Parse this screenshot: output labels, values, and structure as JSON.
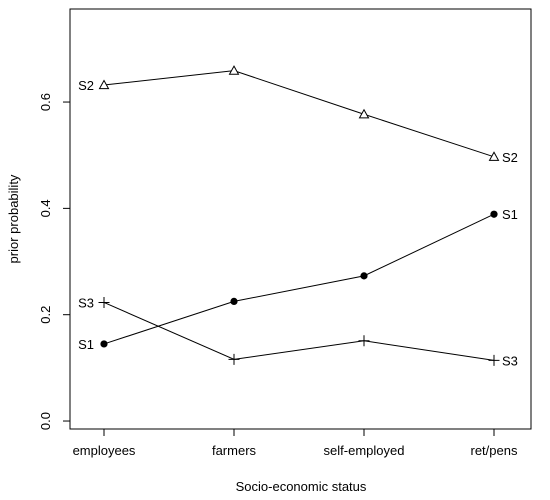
{
  "chart_data": {
    "type": "line",
    "title": "",
    "xlabel": "Socio-economic status",
    "ylabel": "prior probability",
    "categories": [
      "employees",
      "farmers",
      "self-employed",
      "ret/pens"
    ],
    "ylim": [
      -0.015,
      0.775
    ],
    "yticks": [
      "0.0",
      "0.2",
      "0.4",
      "0.6"
    ],
    "grid": false,
    "legend": "none",
    "series": [
      {
        "name": "S1",
        "marker": "filled-circle",
        "values": [
          0.145,
          0.225,
          0.273,
          0.389
        ],
        "start_label": "S1",
        "end_label": "S1"
      },
      {
        "name": "S2",
        "marker": "open-triangle",
        "values": [
          0.632,
          0.659,
          0.577,
          0.497
        ],
        "start_label": "S2",
        "end_label": "S2"
      },
      {
        "name": "S3",
        "marker": "plus",
        "values": [
          0.223,
          0.116,
          0.151,
          0.114
        ],
        "start_label": "S3",
        "end_label": "S3"
      }
    ]
  }
}
